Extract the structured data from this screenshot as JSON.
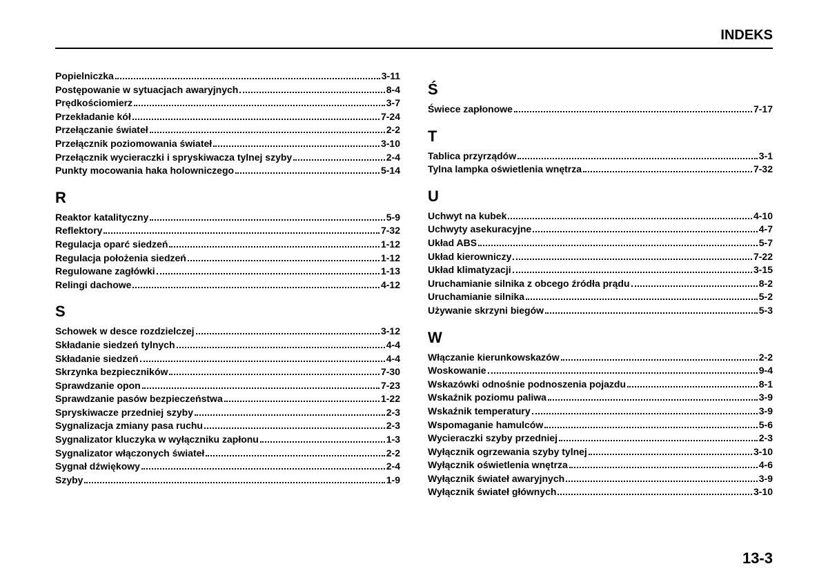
{
  "header": "INDEKS",
  "page_number": "13-3",
  "left": {
    "preEntries": [
      {
        "label": "Popielniczka",
        "page": "3-11"
      },
      {
        "label": "Postępowanie w sytuacjach awaryjnych",
        "page": "8-4"
      },
      {
        "label": "Prędkościomierz",
        "page": "3-7"
      },
      {
        "label": "Przekładanie kół",
        "page": "7-24"
      },
      {
        "label": "Przełączanie świateł",
        "page": "2-2"
      },
      {
        "label": "Przełącznik poziomowania świateł",
        "page": "3-10"
      },
      {
        "label": "Przełącznik wycieraczki i spryskiwacza tylnej szyby",
        "page": "2-4"
      },
      {
        "label": "Punkty mocowania haka holowniczego",
        "page": "5-14"
      }
    ],
    "sections": [
      {
        "letter": "R",
        "entries": [
          {
            "label": "Reaktor katalityczny",
            "page": "5-9"
          },
          {
            "label": "Reflektory",
            "page": "7-32"
          },
          {
            "label": "Regulacja oparć siedzeń",
            "page": "1-12"
          },
          {
            "label": "Regulacja położenia siedzeń",
            "page": "1-12"
          },
          {
            "label": "Regulowane zagłówki",
            "page": "1-13"
          },
          {
            "label": "Relingi dachowe",
            "page": "4-12"
          }
        ]
      },
      {
        "letter": "S",
        "entries": [
          {
            "label": "Schowek w desce rozdzielczej",
            "page": "3-12"
          },
          {
            "label": "Składanie siedzeń tylnych",
            "page": "4-4"
          },
          {
            "label": "Składanie siedzeń",
            "page": "4-4"
          },
          {
            "label": "Skrzynka bezpieczników",
            "page": "7-30"
          },
          {
            "label": "Sprawdzanie opon",
            "page": "7-23"
          },
          {
            "label": "Sprawdzanie pasów bezpieczeństwa",
            "page": "1-22"
          },
          {
            "label": "Spryskiwacze przedniej szyby",
            "page": "2-3"
          },
          {
            "label": "Sygnalizacja zmiany pasa ruchu",
            "page": "2-3"
          },
          {
            "label": "Sygnalizator kluczyka w wyłączniku zapłonu",
            "page": "1-3"
          },
          {
            "label": "Sygnalizator włączonych świateł",
            "page": "2-2"
          },
          {
            "label": "Sygnał dźwiękowy",
            "page": "2-4"
          },
          {
            "label": "Szyby",
            "page": "1-9"
          }
        ]
      }
    ]
  },
  "right": {
    "sections": [
      {
        "letter": "Ś",
        "entries": [
          {
            "label": "Świece zapłonowe",
            "page": "7-17"
          }
        ]
      },
      {
        "letter": "T",
        "entries": [
          {
            "label": "Tablica przyrządów",
            "page": "3-1"
          },
          {
            "label": "Tylna lampka oświetlenia wnętrza",
            "page": "7-32"
          }
        ]
      },
      {
        "letter": "U",
        "entries": [
          {
            "label": "Uchwyt na kubek",
            "page": "4-10"
          },
          {
            "label": "Uchwyty asekuracyjne",
            "page": "4-7"
          },
          {
            "label": "Układ ABS",
            "page": "5-7"
          },
          {
            "label": "Układ kierowniczy",
            "page": "7-22"
          },
          {
            "label": "Układ klimatyzacji",
            "page": "3-15"
          },
          {
            "label": "Uruchamianie silnika z obcego źródła prądu",
            "page": "8-2"
          },
          {
            "label": "Uruchamianie silnika",
            "page": "5-2"
          },
          {
            "label": "Używanie skrzyni biegów",
            "page": "5-3"
          }
        ]
      },
      {
        "letter": "W",
        "entries": [
          {
            "label": "Włączanie kierunkowskazów",
            "page": "2-2"
          },
          {
            "label": "Woskowanie",
            "page": "9-4"
          },
          {
            "label": "Wskazówki odnośnie podnoszenia pojazdu",
            "page": "8-1"
          },
          {
            "label": "Wskaźnik poziomu paliwa",
            "page": "3-9"
          },
          {
            "label": "Wskaźnik temperatury",
            "page": "3-9"
          },
          {
            "label": "Wspomaganie hamulców",
            "page": "5-6"
          },
          {
            "label": "Wycieraczki szyby przedniej",
            "page": "2-3"
          },
          {
            "label": "Wyłącznik ogrzewania szyby tylnej",
            "page": "3-10"
          },
          {
            "label": "Wyłącznik oświetlenia wnętrza",
            "page": "4-6"
          },
          {
            "label": "Wyłącznik świateł awaryjnych",
            "page": "3-9"
          },
          {
            "label": "Wyłącznik świateł głównych",
            "page": "3-10"
          }
        ]
      }
    ]
  }
}
